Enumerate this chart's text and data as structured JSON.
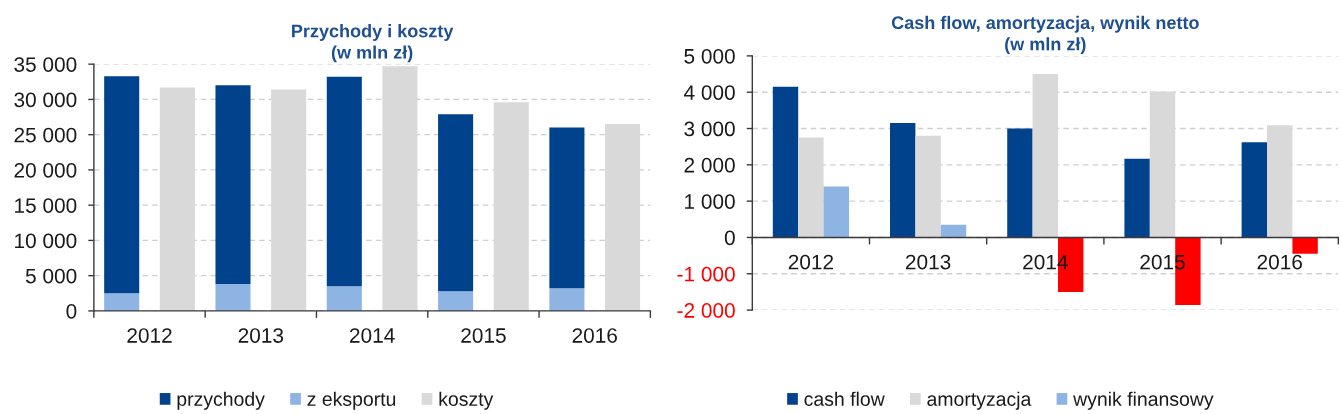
{
  "chart_data": [
    {
      "type": "bar",
      "title": "Przychody i koszty\n(w mln zł)",
      "categories": [
        "2012",
        null,
        "2013",
        null,
        "2014",
        null,
        "2015",
        null,
        "2016",
        null
      ],
      "stacked": true,
      "series": [
        {
          "name": "z eksportu",
          "color": "#8db4e2",
          "values": [
            2500,
            null,
            3800,
            null,
            3500,
            null,
            2800,
            null,
            3200,
            null
          ]
        },
        {
          "name": "przychody",
          "color": "#00438c",
          "values": [
            30800,
            null,
            28200,
            null,
            29700,
            null,
            25100,
            null,
            22800,
            null
          ]
        },
        {
          "name": "koszty",
          "color": "#d9d9d9",
          "values": [
            null,
            31700,
            null,
            31400,
            null,
            34700,
            null,
            29600,
            null,
            26500
          ]
        }
      ],
      "ylim": [
        0,
        35000
      ],
      "yticks": [
        0,
        {
          "value": 5000,
          "label": "5 000"
        },
        {
          "value": 10000,
          "label": "10 000"
        },
        {
          "value": 15000,
          "label": "15 000"
        },
        {
          "value": 20000,
          "label": "20 000"
        },
        {
          "value": 25000,
          "label": "25 000"
        },
        {
          "value": 30000,
          "label": "30 000"
        },
        {
          "value": 35000,
          "label": "35 000"
        }
      ],
      "grid": "y",
      "legend": "bottom"
    },
    {
      "type": "bar",
      "title": "Cash flow, amortyzacja, wynik netto\n(w mln zł)",
      "categories": [
        "2012",
        "2013",
        "2014",
        "2015",
        "2016"
      ],
      "series": [
        {
          "name": "cash flow",
          "color": "#00438c",
          "values": [
            4150,
            3150,
            3000,
            2170,
            2620
          ]
        },
        {
          "name": "amortyzacja",
          "color": "#d9d9d9",
          "values": [
            2750,
            2800,
            4500,
            4020,
            3090
          ]
        },
        {
          "name": "wynik finansowy",
          "color": "#8db4e2",
          "colors": [
            "#8db4e2",
            "#8db4e2",
            "#ff0000",
            "#ff0000",
            "#ff0000"
          ],
          "values": [
            1400,
            350,
            -1500,
            -1860,
            -450
          ]
        }
      ],
      "ylim": [
        -2000,
        5000
      ],
      "yticks": [
        {
          "value": -2000,
          "label": "-2 000"
        },
        {
          "value": -1000,
          "label": "-1 000"
        },
        0,
        {
          "value": 1000,
          "label": "1 000"
        },
        {
          "value": 2000,
          "label": "2 000"
        },
        {
          "value": 3000,
          "label": "3 000"
        },
        {
          "value": 4000,
          "label": "4 000"
        },
        {
          "value": 5000,
          "label": "5 000"
        }
      ],
      "grid": "y",
      "legend": "bottom"
    }
  ]
}
